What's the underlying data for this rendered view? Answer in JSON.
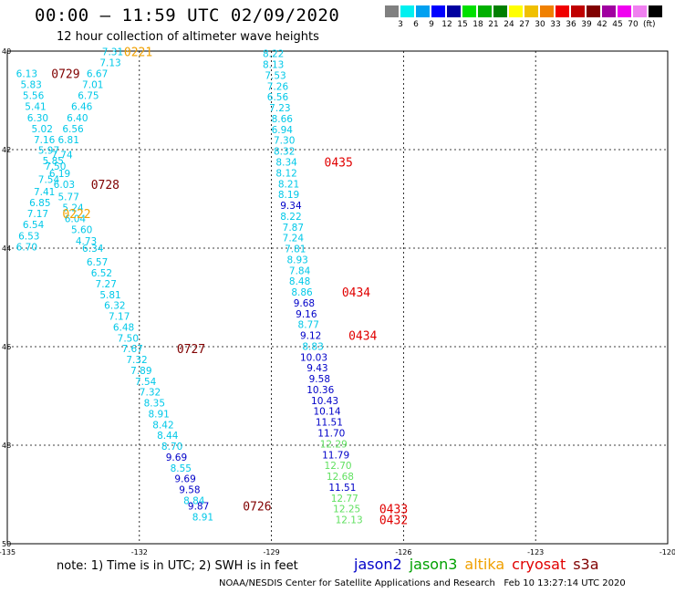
{
  "title": "00:00 – 11:59 UTC 02/09/2020",
  "subtitle": "12 hour collection of altimeter wave heights",
  "colorbar": {
    "colors": [
      "#808080",
      "#00f0f0",
      "#00a0f0",
      "#0000ff",
      "#0000a0",
      "#00e000",
      "#00b000",
      "#008000",
      "#ffff00",
      "#f0c000",
      "#f08000",
      "#f00000",
      "#c00000",
      "#800000",
      "#a000a0",
      "#f000f0",
      "#f080f0",
      "#000000"
    ],
    "labels": [
      "3",
      "6",
      "9",
      "12",
      "15",
      "18",
      "21",
      "24",
      "27",
      "30",
      "33",
      "36",
      "39",
      "42",
      "45",
      "70"
    ],
    "unit": "(ft)"
  },
  "map": {
    "lon_ticks": [
      "-135",
      "-132",
      "-129",
      "-126",
      "-123",
      "-120"
    ],
    "lat_ticks": [
      "40",
      "42",
      "44",
      "46",
      "48",
      "50"
    ],
    "lon_range": [
      -135,
      -120
    ],
    "lat_range": [
      40,
      50
    ],
    "grid": true
  },
  "swh_labels": [
    {
      "v": "7.31",
      "lon": -132.85,
      "lat": 40.01,
      "c": "#00c8e8"
    },
    {
      "v": "7.13",
      "lon": -132.9,
      "lat": 40.23,
      "c": "#00c8e8"
    },
    {
      "v": "6.13",
      "lon": -134.8,
      "lat": 40.45,
      "c": "#00c8e8"
    },
    {
      "v": "6.67",
      "lon": -133.2,
      "lat": 40.45,
      "c": "#00c8e8"
    },
    {
      "v": "5.83",
      "lon": -134.7,
      "lat": 40.68,
      "c": "#00c8e8"
    },
    {
      "v": "7.01",
      "lon": -133.3,
      "lat": 40.68,
      "c": "#00c8e8"
    },
    {
      "v": "5.56",
      "lon": -134.65,
      "lat": 40.9,
      "c": "#00c8e8"
    },
    {
      "v": "6.75",
      "lon": -133.4,
      "lat": 40.9,
      "c": "#00c8e8"
    },
    {
      "v": "5.41",
      "lon": -134.6,
      "lat": 41.12,
      "c": "#00c8e8"
    },
    {
      "v": "6.46",
      "lon": -133.55,
      "lat": 41.12,
      "c": "#00c8e8"
    },
    {
      "v": "6.30",
      "lon": -134.55,
      "lat": 41.35,
      "c": "#00c8e8"
    },
    {
      "v": "6.40",
      "lon": -133.65,
      "lat": 41.35,
      "c": "#00c8e8"
    },
    {
      "v": "5.02",
      "lon": -134.45,
      "lat": 41.57,
      "c": "#00c8e8"
    },
    {
      "v": "6.56",
      "lon": -133.75,
      "lat": 41.57,
      "c": "#00c8e8"
    },
    {
      "v": "7.16",
      "lon": -134.4,
      "lat": 41.8,
      "c": "#00c8e8"
    },
    {
      "v": "6.81",
      "lon": -133.85,
      "lat": 41.8,
      "c": "#00c8e8"
    },
    {
      "v": "5.97",
      "lon": -134.3,
      "lat": 42.01,
      "c": "#00c8e8"
    },
    {
      "v": "7.74",
      "lon": -134.0,
      "lat": 42.1,
      "c": "#00c8e8"
    },
    {
      "v": "5.85",
      "lon": -134.2,
      "lat": 42.22,
      "c": "#00c8e8"
    },
    {
      "v": "7.50",
      "lon": -134.15,
      "lat": 42.33,
      "c": "#00c8e8"
    },
    {
      "v": "6.19",
      "lon": -134.05,
      "lat": 42.48,
      "c": "#00c8e8"
    },
    {
      "v": "7.54",
      "lon": -134.3,
      "lat": 42.6,
      "c": "#00c8e8"
    },
    {
      "v": "6.03",
      "lon": -133.95,
      "lat": 42.7,
      "c": "#00c8e8"
    },
    {
      "v": "7.41",
      "lon": -134.4,
      "lat": 42.85,
      "c": "#00c8e8"
    },
    {
      "v": "5.77",
      "lon": -133.85,
      "lat": 42.95,
      "c": "#00c8e8"
    },
    {
      "v": "6.85",
      "lon": -134.5,
      "lat": 43.07,
      "c": "#00c8e8"
    },
    {
      "v": "5.24",
      "lon": -133.75,
      "lat": 43.18,
      "c": "#00c8e8"
    },
    {
      "v": "7.17",
      "lon": -134.55,
      "lat": 43.3,
      "c": "#00c8e8"
    },
    {
      "v": "6.04",
      "lon": -133.7,
      "lat": 43.4,
      "c": "#00c8e8"
    },
    {
      "v": "6.54",
      "lon": -134.65,
      "lat": 43.52,
      "c": "#00c8e8"
    },
    {
      "v": "5.60",
      "lon": -133.55,
      "lat": 43.62,
      "c": "#00c8e8"
    },
    {
      "v": "6.53",
      "lon": -134.75,
      "lat": 43.75,
      "c": "#00c8e8"
    },
    {
      "v": "4.73",
      "lon": -133.45,
      "lat": 43.85,
      "c": "#00c8e8"
    },
    {
      "v": "6.70",
      "lon": -134.8,
      "lat": 43.97,
      "c": "#00c8e8"
    },
    {
      "v": "6.34",
      "lon": -133.3,
      "lat": 44.0,
      "c": "#00c8e8"
    },
    {
      "v": "6.57",
      "lon": -133.2,
      "lat": 44.28,
      "c": "#00c8e8"
    },
    {
      "v": "6.52",
      "lon": -133.1,
      "lat": 44.5,
      "c": "#00c8e8"
    },
    {
      "v": "7.27",
      "lon": -133.0,
      "lat": 44.72,
      "c": "#00c8e8"
    },
    {
      "v": "5.81",
      "lon": -132.9,
      "lat": 44.94,
      "c": "#00c8e8"
    },
    {
      "v": "6.32",
      "lon": -132.8,
      "lat": 45.16,
      "c": "#00c8e8"
    },
    {
      "v": "7.17",
      "lon": -132.7,
      "lat": 45.38,
      "c": "#00c8e8"
    },
    {
      "v": "6.48",
      "lon": -132.6,
      "lat": 45.6,
      "c": "#00c8e8"
    },
    {
      "v": "7.50",
      "lon": -132.5,
      "lat": 45.82,
      "c": "#00c8e8"
    },
    {
      "v": "7.67",
      "lon": -132.4,
      "lat": 46.04,
      "c": "#00c8e8"
    },
    {
      "v": "7.32",
      "lon": -132.3,
      "lat": 46.26,
      "c": "#00c8e8"
    },
    {
      "v": "7.89",
      "lon": -132.2,
      "lat": 46.48,
      "c": "#00c8e8"
    },
    {
      "v": "7.54",
      "lon": -132.1,
      "lat": 46.7,
      "c": "#00c8e8"
    },
    {
      "v": "7.32",
      "lon": -132.0,
      "lat": 46.92,
      "c": "#00c8e8"
    },
    {
      "v": "8.35",
      "lon": -131.9,
      "lat": 47.14,
      "c": "#00c8e8"
    },
    {
      "v": "8.91",
      "lon": -131.8,
      "lat": 47.36,
      "c": "#00c8e8"
    },
    {
      "v": "8.42",
      "lon": -131.7,
      "lat": 47.58,
      "c": "#00c8e8"
    },
    {
      "v": "8.44",
      "lon": -131.6,
      "lat": 47.8,
      "c": "#00c8e8"
    },
    {
      "v": "8.70",
      "lon": -131.5,
      "lat": 48.02,
      "c": "#00c8e8"
    },
    {
      "v": "9.69",
      "lon": -131.4,
      "lat": 48.24,
      "c": "#0000c8"
    },
    {
      "v": "8.55",
      "lon": -131.3,
      "lat": 48.46,
      "c": "#00c8e8"
    },
    {
      "v": "9.69",
      "lon": -131.2,
      "lat": 48.68,
      "c": "#0000c8"
    },
    {
      "v": "9.58",
      "lon": -131.1,
      "lat": 48.9,
      "c": "#0000c8"
    },
    {
      "v": "8.84",
      "lon": -131.0,
      "lat": 49.12,
      "c": "#00c8e8"
    },
    {
      "v": "9.87",
      "lon": -130.9,
      "lat": 49.23,
      "c": "#0000c8"
    },
    {
      "v": "8.91",
      "lon": -130.8,
      "lat": 49.45,
      "c": "#00c8e8"
    },
    {
      "v": "8.22",
      "lon": -129.2,
      "lat": 40.05,
      "c": "#00c8e8"
    },
    {
      "v": "8.13",
      "lon": -129.2,
      "lat": 40.27,
      "c": "#00c8e8"
    },
    {
      "v": "7.53",
      "lon": -129.15,
      "lat": 40.49,
      "c": "#00c8e8"
    },
    {
      "v": "7.26",
      "lon": -129.1,
      "lat": 40.71,
      "c": "#00c8e8"
    },
    {
      "v": "6.56",
      "lon": -129.1,
      "lat": 40.93,
      "c": "#00c8e8"
    },
    {
      "v": "7.23",
      "lon": -129.05,
      "lat": 41.15,
      "c": "#00c8e8"
    },
    {
      "v": "8.66",
      "lon": -129.0,
      "lat": 41.37,
      "c": "#00c8e8"
    },
    {
      "v": "6.94",
      "lon": -129.0,
      "lat": 41.59,
      "c": "#00c8e8"
    },
    {
      "v": "7.30",
      "lon": -128.95,
      "lat": 41.81,
      "c": "#00c8e8"
    },
    {
      "v": "8.32",
      "lon": -128.95,
      "lat": 42.03,
      "c": "#00c8e8"
    },
    {
      "v": "8.34",
      "lon": -128.9,
      "lat": 42.25,
      "c": "#00c8e8"
    },
    {
      "v": "8.12",
      "lon": -128.9,
      "lat": 42.47,
      "c": "#00c8e8"
    },
    {
      "v": "8.21",
      "lon": -128.85,
      "lat": 42.69,
      "c": "#00c8e8"
    },
    {
      "v": "8.19",
      "lon": -128.85,
      "lat": 42.91,
      "c": "#00c8e8"
    },
    {
      "v": "9.34",
      "lon": -128.8,
      "lat": 43.13,
      "c": "#0000c8"
    },
    {
      "v": "8.22",
      "lon": -128.8,
      "lat": 43.35,
      "c": "#00c8e8"
    },
    {
      "v": "7.87",
      "lon": -128.75,
      "lat": 43.57,
      "c": "#00c8e8"
    },
    {
      "v": "7.24",
      "lon": -128.75,
      "lat": 43.79,
      "c": "#00c8e8"
    },
    {
      "v": "7.81",
      "lon": -128.7,
      "lat": 44.01,
      "c": "#00c8e8"
    },
    {
      "v": "8.93",
      "lon": -128.65,
      "lat": 44.23,
      "c": "#00c8e8"
    },
    {
      "v": "7.84",
      "lon": -128.6,
      "lat": 44.45,
      "c": "#00c8e8"
    },
    {
      "v": "8.48",
      "lon": -128.6,
      "lat": 44.67,
      "c": "#00c8e8"
    },
    {
      "v": "8.86",
      "lon": -128.55,
      "lat": 44.89,
      "c": "#00c8e8"
    },
    {
      "v": "9.68",
      "lon": -128.5,
      "lat": 45.11,
      "c": "#0000c8"
    },
    {
      "v": "9.16",
      "lon": -128.45,
      "lat": 45.33,
      "c": "#0000c8"
    },
    {
      "v": "8.77",
      "lon": -128.4,
      "lat": 45.55,
      "c": "#00c8e8"
    },
    {
      "v": "9.12",
      "lon": -128.35,
      "lat": 45.77,
      "c": "#0000c8"
    },
    {
      "v": "8.83",
      "lon": -128.3,
      "lat": 45.99,
      "c": "#00c8e8"
    },
    {
      "v": "10.03",
      "lon": -128.35,
      "lat": 46.21,
      "c": "#0000c8"
    },
    {
      "v": "9.43",
      "lon": -128.2,
      "lat": 46.43,
      "c": "#0000c8"
    },
    {
      "v": "9.58",
      "lon": -128.15,
      "lat": 46.65,
      "c": "#0000c8"
    },
    {
      "v": "10.36",
      "lon": -128.2,
      "lat": 46.87,
      "c": "#0000c8"
    },
    {
      "v": "10.43",
      "lon": -128.1,
      "lat": 47.09,
      "c": "#0000c8"
    },
    {
      "v": "10.14",
      "lon": -128.05,
      "lat": 47.31,
      "c": "#0000c8"
    },
    {
      "v": "11.51",
      "lon": -128.0,
      "lat": 47.53,
      "c": "#0000c8"
    },
    {
      "v": "11.70",
      "lon": -127.95,
      "lat": 47.75,
      "c": "#0000c8"
    },
    {
      "v": "12.29",
      "lon": -127.9,
      "lat": 47.97,
      "c": "#60e060"
    },
    {
      "v": "11.79",
      "lon": -127.85,
      "lat": 48.19,
      "c": "#0000c8"
    },
    {
      "v": "12.70",
      "lon": -127.8,
      "lat": 48.41,
      "c": "#60e060"
    },
    {
      "v": "12.68",
      "lon": -127.75,
      "lat": 48.63,
      "c": "#60e060"
    },
    {
      "v": "11.51",
      "lon": -127.7,
      "lat": 48.85,
      "c": "#0000c8"
    },
    {
      "v": "12.77",
      "lon": -127.65,
      "lat": 49.07,
      "c": "#60e060"
    },
    {
      "v": "12.25",
      "lon": -127.6,
      "lat": 49.29,
      "c": "#60e060"
    },
    {
      "v": "12.13",
      "lon": -127.55,
      "lat": 49.51,
      "c": "#60e060"
    }
  ],
  "pass_times": [
    {
      "t": "0221",
      "lon": -132.35,
      "lat": 40.01,
      "c": "#f0a000"
    },
    {
      "t": "0729",
      "lon": -134.0,
      "lat": 40.45,
      "c": "#800000"
    },
    {
      "t": "0728",
      "lon": -133.1,
      "lat": 42.7,
      "c": "#800000"
    },
    {
      "t": "0222",
      "lon": -133.75,
      "lat": 43.3,
      "c": "#f0a000"
    },
    {
      "t": "0727",
      "lon": -131.15,
      "lat": 46.04,
      "c": "#800000"
    },
    {
      "t": "0726",
      "lon": -129.65,
      "lat": 49.23,
      "c": "#800000"
    },
    {
      "t": "0435",
      "lon": -127.8,
      "lat": 42.25,
      "c": "#e00000"
    },
    {
      "t": "0434",
      "lon": -127.4,
      "lat": 44.89,
      "c": "#e00000"
    },
    {
      "t": "0434",
      "lon": -127.25,
      "lat": 45.77,
      "c": "#e00000"
    },
    {
      "t": "0433",
      "lon": -126.55,
      "lat": 49.29,
      "c": "#e00000"
    },
    {
      "t": "0432",
      "lon": -126.55,
      "lat": 49.51,
      "c": "#e00000"
    }
  ],
  "note": "note: 1) Time is in UTC; 2) SWH is in feet",
  "legend": [
    {
      "name": "jason2",
      "color": "#0000c8"
    },
    {
      "name": "jason3",
      "color": "#00a000"
    },
    {
      "name": "altika",
      "color": "#f0a000"
    },
    {
      "name": "cryosat",
      "color": "#e00000"
    },
    {
      "name": "s3a",
      "color": "#800000"
    }
  ],
  "footer": "NOAA/NESDIS Center for Satellite Applications and Research   Feb 10 13:27:14 UTC 2020"
}
